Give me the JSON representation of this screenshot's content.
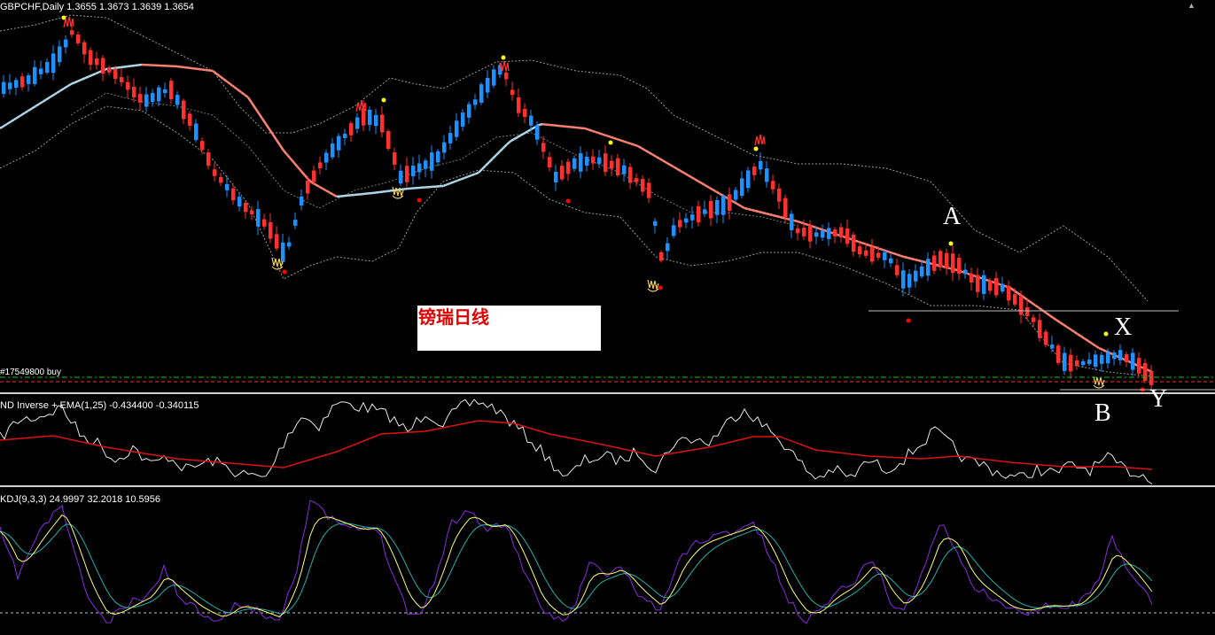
{
  "window": {
    "title": "GBPCHF,Daily  1.3655 1.3673 1.3639 1.3654",
    "close_glyph": "▲"
  },
  "main_chart": {
    "order_label": "#17549800 buy",
    "note_text": "镑瑞日线",
    "annotations": {
      "a": "A",
      "x": "X",
      "b": "B",
      "y": "Y"
    },
    "colors": {
      "bull": "#1e90ff",
      "bear": "#ff3030",
      "ma_up": "#add8e6",
      "ma_down": "#fa8072",
      "band": "#9a9a9a",
      "fractal_up": "#ffff00",
      "fractal_down": "#ff0000"
    }
  },
  "subwindow_1": {
    "label": "ND Inverse + EMA(1,25) -0.434400 -0.340115",
    "colors": {
      "line": "#e6e6e6",
      "ema": "#dd1111"
    }
  },
  "subwindow_2": {
    "label": "KDJ(9,3,3) 24.9997 32.2018 10.5956",
    "colors": {
      "k": "#ffff66",
      "d": "#20b2aa",
      "j": "#8a2be2"
    }
  }
}
